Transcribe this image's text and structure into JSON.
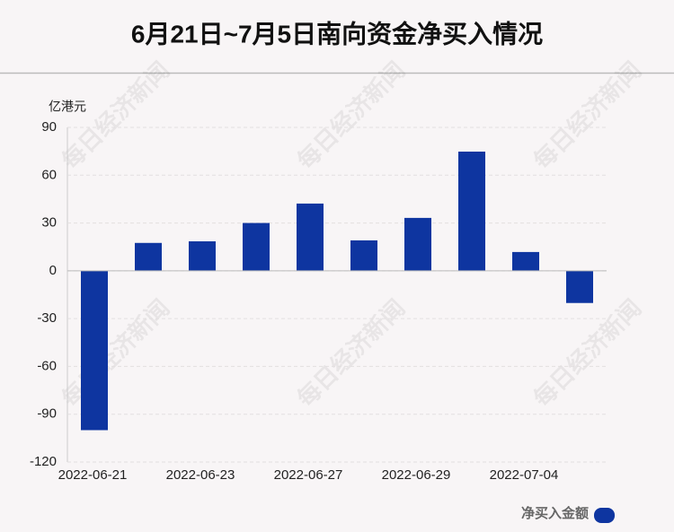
{
  "chart_data": {
    "type": "bar",
    "title": "6月21日~7月5日南向资金净买入情况",
    "y_axis_label": "亿港元",
    "categories": [
      "2022-06-21",
      null,
      "2022-06-23",
      null,
      "2022-06-27",
      null,
      "2022-06-29",
      null,
      "2022-07-04",
      null
    ],
    "series": [
      {
        "name": "净买入金额",
        "color": "#0e35a0",
        "values": [
          -100,
          17.5,
          18.5,
          30,
          42.2,
          19.1,
          33.2,
          74.8,
          11.8,
          -20.2
        ]
      }
    ],
    "ylim": [
      -120,
      90
    ],
    "yticks": [
      -120,
      -90,
      -60,
      -30,
      0,
      30,
      60,
      90
    ],
    "grid": true,
    "watermark": "每日经济新闻"
  }
}
